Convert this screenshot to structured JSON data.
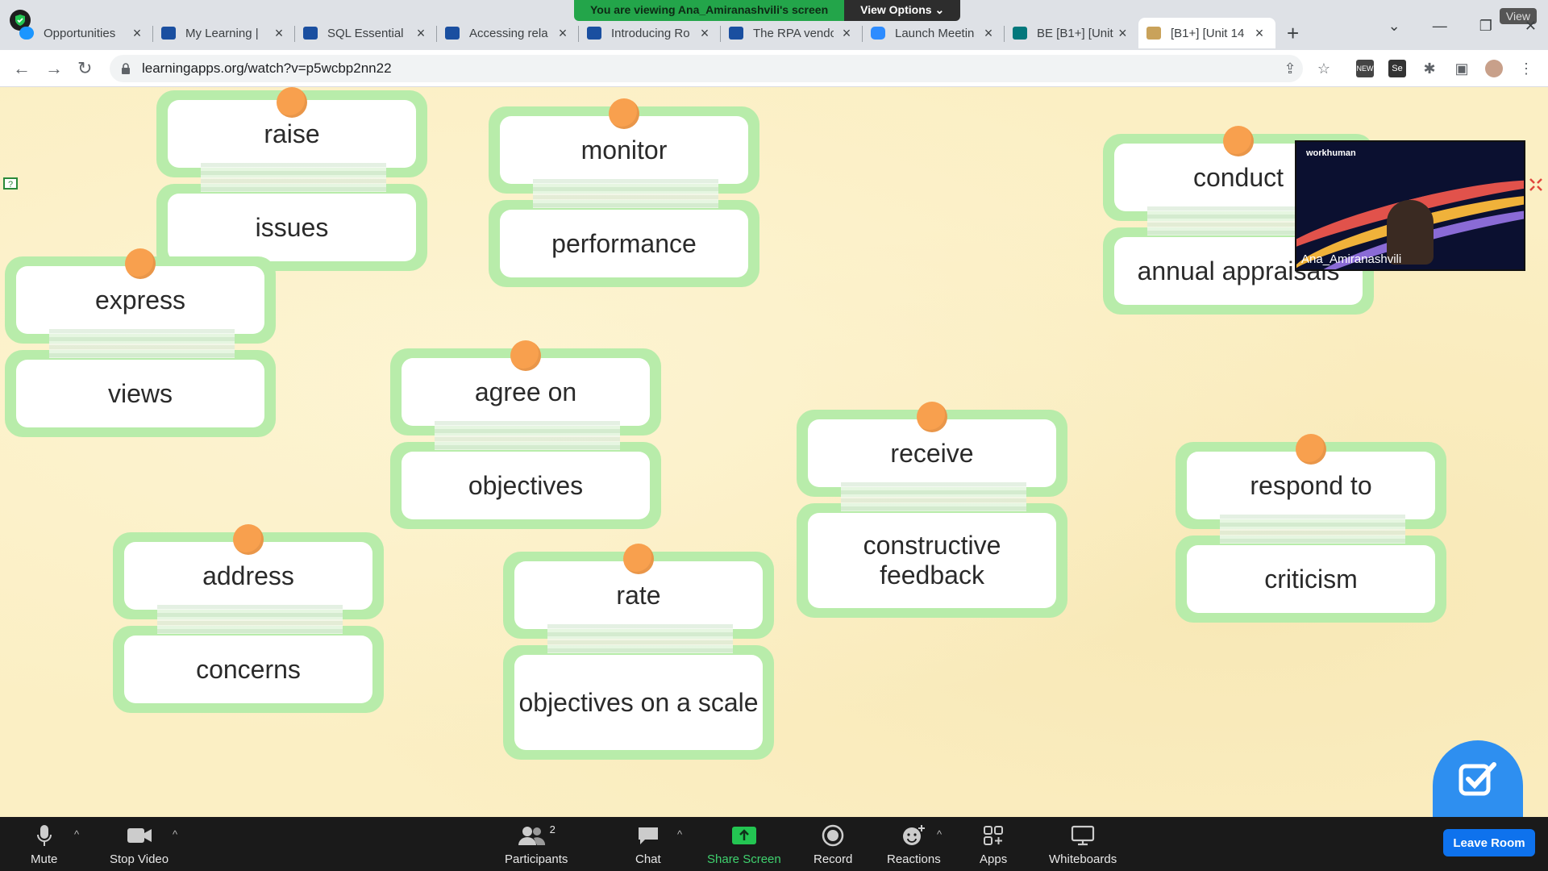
{
  "screen_share": {
    "banner_text": "You are viewing Ana_Amiranashvili's screen",
    "view_options_label": "View Options ⌄",
    "view_button_label": "View"
  },
  "browser": {
    "tabs": [
      {
        "title": "Opportunities",
        "icon": "salesforce-cloud-icon",
        "color": "#1b96ff"
      },
      {
        "title": "My Learning |",
        "icon": "book-icon",
        "color": "#1a4fa0"
      },
      {
        "title": "SQL Essential",
        "icon": "book-icon",
        "color": "#1a4fa0"
      },
      {
        "title": "Accessing rela",
        "icon": "video-play-icon",
        "color": "#1a4fa0"
      },
      {
        "title": "Introducing Ro",
        "icon": "book-icon",
        "color": "#1a4fa0"
      },
      {
        "title": "The RPA vendo",
        "icon": "video-play-icon",
        "color": "#1a4fa0"
      },
      {
        "title": "Launch Meetin",
        "icon": "zoom-icon",
        "color": "#2d8cff"
      },
      {
        "title": "BE [B1+] [Unit",
        "icon": "sharepoint-icon",
        "color": "#03787c"
      },
      {
        "title": "[B1+] [Unit 14",
        "icon": "learningapps-icon",
        "color": "#c9a25a"
      }
    ],
    "url": "learningapps.org/watch?v=p5wcbp2nn22",
    "toolbar_icons": [
      "share-icon",
      "star-icon",
      "new-extension-icon",
      "se-extension-icon",
      "puzzle-icon",
      "sidepanel-icon",
      "profile-avatar",
      "menu-dots-icon"
    ]
  },
  "app": {
    "pairs": [
      {
        "top": "raise",
        "bottom": "issues"
      },
      {
        "top": "monitor",
        "bottom": "performance"
      },
      {
        "top": "conduct",
        "bottom": "annual appraisals"
      },
      {
        "top": "express",
        "bottom": "views"
      },
      {
        "top": "agree on",
        "bottom": "objectives"
      },
      {
        "top": "receive",
        "bottom": "constructive feedback"
      },
      {
        "top": "respond to",
        "bottom": "criticism"
      },
      {
        "top": "address",
        "bottom": "concerns"
      },
      {
        "top": "rate",
        "bottom": "objectives on a scale"
      }
    ],
    "video": {
      "participant_name": "Ana_Amiranashvili",
      "brand_text": "workhuman"
    }
  },
  "zoom_toolbar": {
    "mute": "Mute",
    "stop_video": "Stop Video",
    "participants": "Participants",
    "participants_count": "2",
    "chat": "Chat",
    "share_screen": "Share Screen",
    "record": "Record",
    "reactions": "Reactions",
    "apps": "Apps",
    "whiteboards": "Whiteboards",
    "leave": "Leave Room"
  },
  "colors": {
    "card_border": "#b8ecaa",
    "pin": "#f8a04e",
    "background": "#fbefc4",
    "share_green": "#23a54a",
    "zoom_blue": "#0e72ed"
  }
}
